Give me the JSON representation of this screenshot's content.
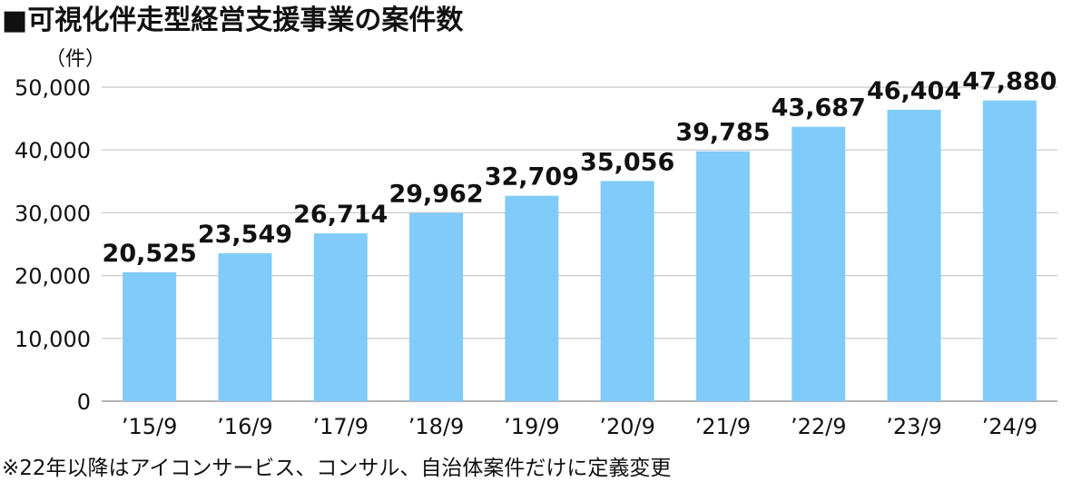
{
  "chart_data": {
    "type": "bar",
    "title": "■可視化伴走型経営支援事業の案件数",
    "unit_label": "（件）",
    "categories": [
      "’15/9",
      "’16/9",
      "’17/9",
      "’18/9",
      "’19/9",
      "’20/9",
      "’21/9",
      "’22/9",
      "’23/9",
      "’24/9"
    ],
    "values": [
      20525,
      23549,
      26714,
      29962,
      32709,
      35056,
      39785,
      43687,
      46404,
      47880
    ],
    "value_labels": [
      "20,525",
      "23,549",
      "26,714",
      "29,962",
      "32,709",
      "35,056",
      "39,785",
      "43,687",
      "46,404",
      "47,880"
    ],
    "ylim": [
      0,
      50000
    ],
    "yticks": [
      0,
      10000,
      20000,
      30000,
      40000,
      50000
    ],
    "ytick_labels": [
      "0",
      "10,000",
      "20,000",
      "30,000",
      "40,000",
      "50,000"
    ],
    "grid": true,
    "bar_color": "#80cbfa",
    "note": "※22年以降はアイコンサービス、コンサル、自治体案件だけに定義変更"
  }
}
